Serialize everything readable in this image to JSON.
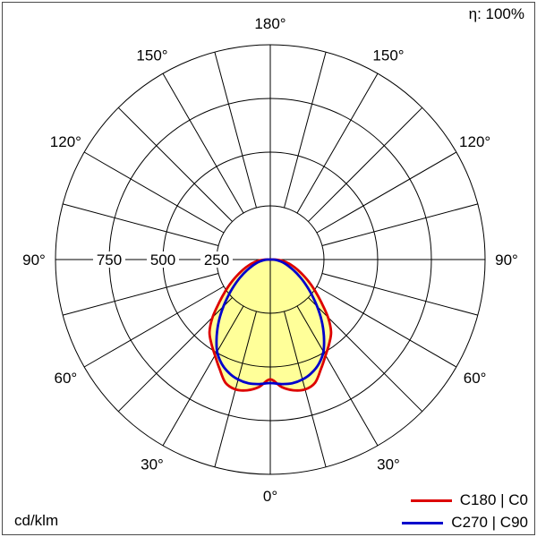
{
  "header": {
    "efficiency": "η: 100%"
  },
  "footer": {
    "unit": "cd/klm"
  },
  "chart_data": {
    "type": "polar",
    "subtype": "luminous-intensity-distribution",
    "unit": "cd/klm",
    "efficiency": "η: 100%",
    "r_max": 1000,
    "radial_ticks": [
      250,
      500,
      750,
      1000
    ],
    "radial_tick_labels": [
      250,
      500,
      750
    ],
    "angle_labels_deg": [
      0,
      30,
      60,
      90,
      120,
      150,
      180
    ],
    "angle_grid_step_deg": 15,
    "fill_color": "#ffff99",
    "grid_color": "#000000",
    "gamma_deg": [
      -90,
      -85,
      -80,
      -75,
      -70,
      -65,
      -60,
      -55,
      -50,
      -45,
      -40,
      -35,
      -30,
      -25,
      -20,
      -15,
      -10,
      -5,
      0,
      5,
      10,
      15,
      20,
      25,
      30,
      35,
      40,
      45,
      50,
      55,
      60,
      65,
      70,
      75,
      80,
      85,
      90
    ],
    "series": [
      {
        "name": "C180 | C0",
        "color": "#dd0000",
        "values": [
          24,
          50,
          78,
          104,
          132,
          166,
          208,
          255,
          310,
          380,
          440,
          478,
          515,
          560,
          610,
          626,
          618,
          595,
          558,
          595,
          618,
          626,
          610,
          560,
          515,
          478,
          440,
          380,
          310,
          255,
          208,
          166,
          132,
          104,
          78,
          50,
          24
        ]
      },
      {
        "name": "C270 | C90",
        "color": "#0000cc",
        "values": [
          14,
          30,
          48,
          68,
          92,
          122,
          158,
          200,
          250,
          308,
          372,
          435,
          495,
          535,
          562,
          578,
          585,
          582,
          575,
          582,
          585,
          578,
          562,
          535,
          495,
          435,
          372,
          308,
          250,
          200,
          158,
          122,
          92,
          68,
          48,
          30,
          14
        ]
      }
    ]
  }
}
